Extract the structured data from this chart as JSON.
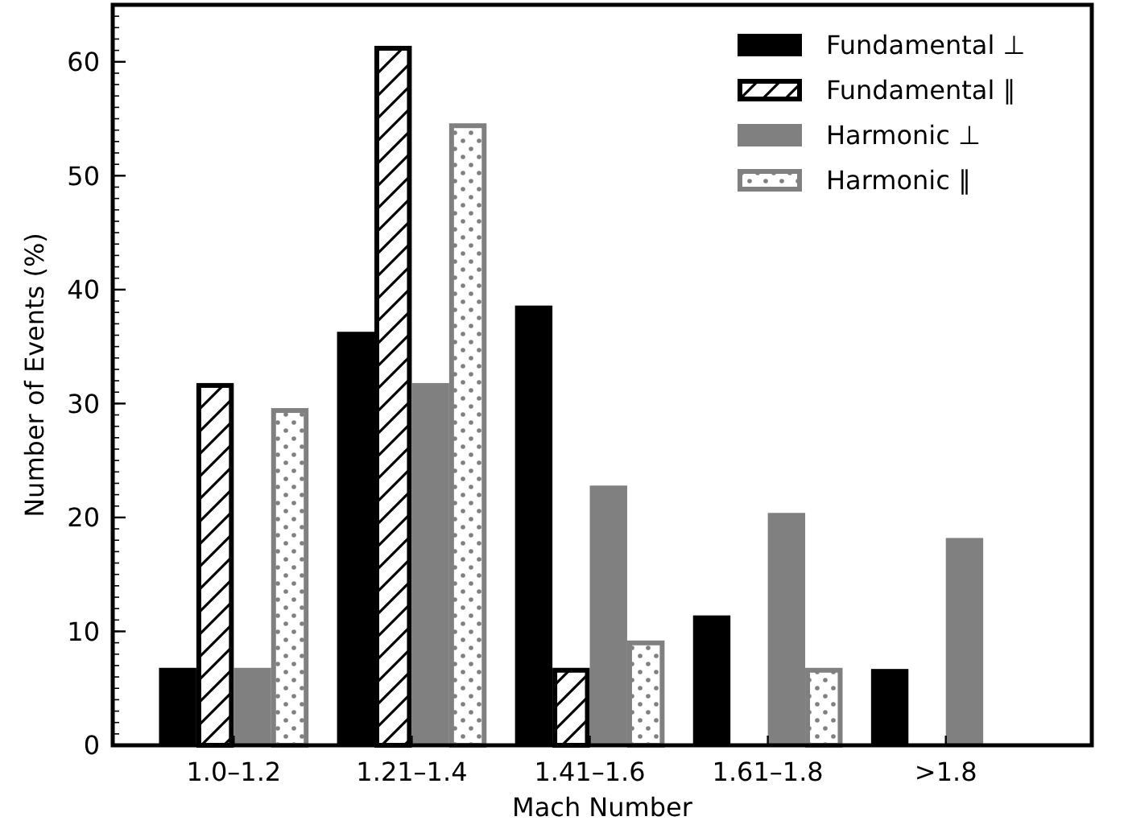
{
  "chart_data": {
    "type": "bar",
    "xlabel": "Mach Number",
    "ylabel": "Number of Events (%)",
    "categories": [
      "1.0–1.2",
      "1.21–1.4",
      "1.41–1.6",
      "1.61–1.8",
      ">1.8"
    ],
    "series": [
      {
        "name": "Fundamental ⊥",
        "color": "#000000",
        "values": [
          6.8,
          36.3,
          38.6,
          11.4,
          6.7
        ]
      },
      {
        "name": "Fundamental ∥",
        "color": "#000000",
        "values": [
          31.8,
          61.4,
          6.8,
          0,
          0
        ]
      },
      {
        "name": "Harmonic ⊥",
        "color": "#808080",
        "values": [
          6.8,
          31.8,
          22.8,
          20.4,
          18.2
        ]
      },
      {
        "name": "Harmonic ∥",
        "color": "#808080",
        "values": [
          29.6,
          54.6,
          9.2,
          6.8,
          0
        ]
      }
    ],
    "ylim": [
      0,
      65
    ],
    "yticks": [
      0,
      10,
      20,
      30,
      40,
      50,
      60
    ],
    "legend": "top right"
  }
}
